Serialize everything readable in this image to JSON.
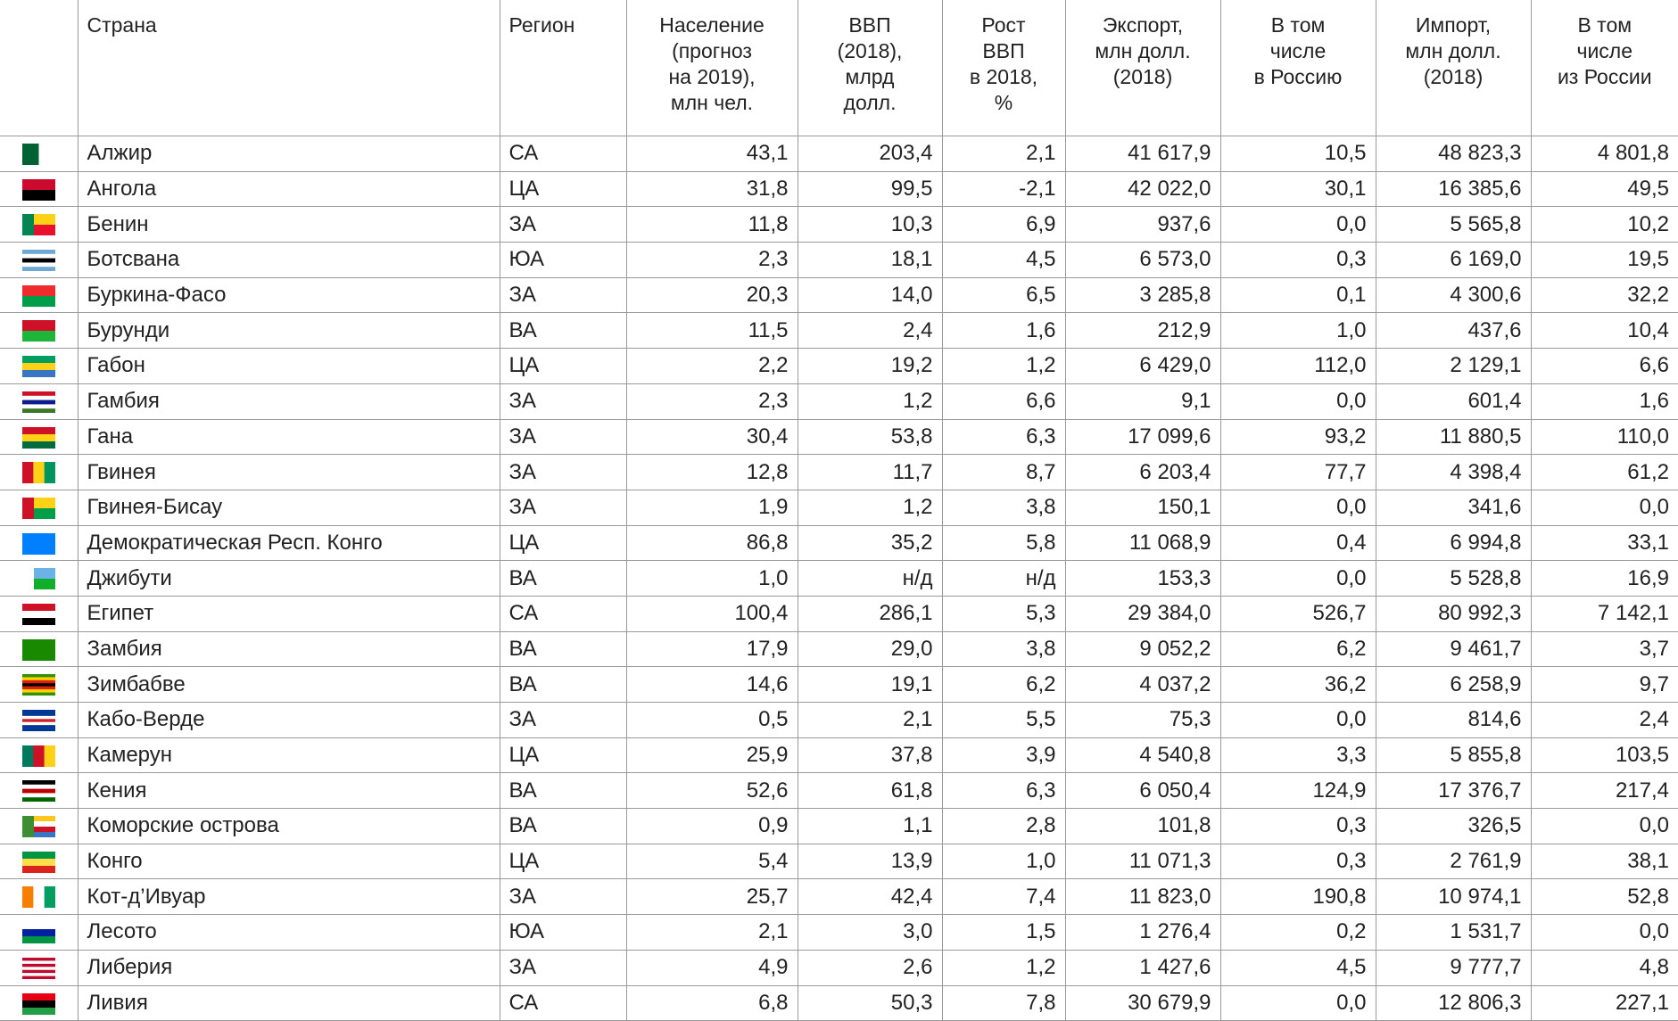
{
  "table": {
    "header": [
      "Страна",
      "Регион",
      "Население\n(прогноз\nна 2019),\nмлн чел.",
      "ВВП\n(2018),\nмлрд\nдолл.",
      "Рост\nВВП\nв 2018,\n%",
      "Экспорт,\nмлн долл.\n(2018)",
      "В том\nчисле\nв Россию",
      "Импорт,\nмлн долл.\n(2018)",
      "В том\nчисле\nиз России"
    ],
    "rows": [
      [
        "Алжир",
        "СА",
        "43,1",
        "203,4",
        "2,1",
        "41 617,9",
        "10,5",
        "48 823,3",
        "4 801,8"
      ],
      [
        "Ангола",
        "ЦА",
        "31,8",
        "99,5",
        "-2,1",
        "42 022,0",
        "30,1",
        "16 385,6",
        "49,5"
      ],
      [
        "Бенин",
        "ЗА",
        "11,8",
        "10,3",
        "6,9",
        "937,6",
        "0,0",
        "5 565,8",
        "10,2"
      ],
      [
        "Ботсвана",
        "ЮА",
        "2,3",
        "18,1",
        "4,5",
        "6 573,0",
        "0,3",
        "6 169,0",
        "19,5"
      ],
      [
        "Буркина-Фасо",
        "ЗА",
        "20,3",
        "14,0",
        "6,5",
        "3 285,8",
        "0,1",
        "4 300,6",
        "32,2"
      ],
      [
        "Бурунди",
        "ВА",
        "11,5",
        "2,4",
        "1,6",
        "212,9",
        "1,0",
        "437,6",
        "10,4"
      ],
      [
        "Габон",
        "ЦА",
        "2,2",
        "19,2",
        "1,2",
        "6 429,0",
        "112,0",
        "2 129,1",
        "6,6"
      ],
      [
        "Гамбия",
        "ЗА",
        "2,3",
        "1,2",
        "6,6",
        "9,1",
        "0,0",
        "601,4",
        "1,6"
      ],
      [
        "Гана",
        "ЗА",
        "30,4",
        "53,8",
        "6,3",
        "17 099,6",
        "93,2",
        "11 880,5",
        "110,0"
      ],
      [
        "Гвинея",
        "ЗА",
        "12,8",
        "11,7",
        "8,7",
        "6 203,4",
        "77,7",
        "4 398,4",
        "61,2"
      ],
      [
        "Гвинея-Бисау",
        "ЗА",
        "1,9",
        "1,2",
        "3,8",
        "150,1",
        "0,0",
        "341,6",
        "0,0"
      ],
      [
        "Демократическая Респ. Конго",
        "ЦА",
        "86,8",
        "35,2",
        "5,8",
        "11 068,9",
        "0,4",
        "6 994,8",
        "33,1"
      ],
      [
        "Джибути",
        "ВА",
        "1,0",
        "н/д",
        "н/д",
        "153,3",
        "0,0",
        "5 528,8",
        "16,9"
      ],
      [
        "Египет",
        "СА",
        "100,4",
        "286,1",
        "5,3",
        "29 384,0",
        "526,7",
        "80 992,3",
        "7 142,1"
      ],
      [
        "Замбия",
        "ВА",
        "17,9",
        "29,0",
        "3,8",
        "9 052,2",
        "6,2",
        "9 461,7",
        "3,7"
      ],
      [
        "Зимбабве",
        "ВА",
        "14,6",
        "19,1",
        "6,2",
        "4 037,2",
        "36,2",
        "6 258,9",
        "9,7"
      ],
      [
        "Кабо-Верде",
        "ЗА",
        "0,5",
        "2,1",
        "5,5",
        "75,3",
        "0,0",
        "814,6",
        "2,4"
      ],
      [
        "Камерун",
        "ЦА",
        "25,9",
        "37,8",
        "3,9",
        "4 540,8",
        "3,3",
        "5 855,8",
        "103,5"
      ],
      [
        "Кения",
        "ВА",
        "52,6",
        "61,8",
        "6,3",
        "6 050,4",
        "124,9",
        "17 376,7",
        "217,4"
      ],
      [
        "Коморские острова",
        "ВА",
        "0,9",
        "1,1",
        "2,8",
        "101,8",
        "0,3",
        "326,5",
        "0,0"
      ],
      [
        "Конго",
        "ЦА",
        "5,4",
        "13,9",
        "1,0",
        "11 071,3",
        "0,3",
        "2 761,9",
        "38,1"
      ],
      [
        "Кот-д’Ивуар",
        "ЗА",
        "25,7",
        "42,4",
        "7,4",
        "11 823,0",
        "190,8",
        "10 974,1",
        "52,8"
      ],
      [
        "Лесото",
        "ЮА",
        "2,1",
        "3,0",
        "1,5",
        "1 276,4",
        "0,2",
        "1 531,7",
        "0,0"
      ],
      [
        "Либерия",
        "ЗА",
        "4,9",
        "2,6",
        "1,2",
        "1 427,6",
        "4,5",
        "9 777,7",
        "4,8"
      ],
      [
        "Ливия",
        "СА",
        "6,8",
        "50,3",
        "7,8",
        "30 679,9",
        "0,0",
        "12 806,3",
        "227,1"
      ]
    ]
  }
}
